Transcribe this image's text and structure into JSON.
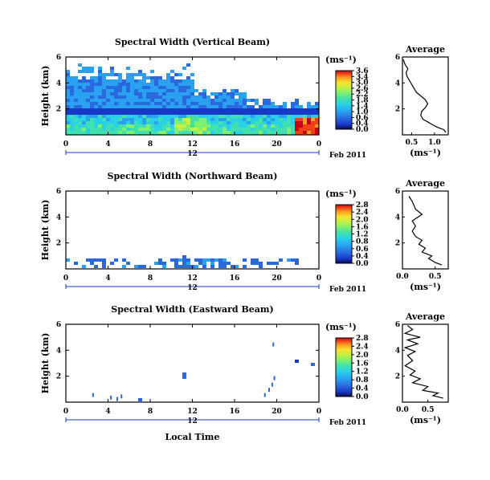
{
  "figure": {
    "date_label": "Feb 2011",
    "xlabel": "Local Time",
    "colorbar_unit": "(ms⁻¹)",
    "avg_unit": "(ms⁻¹)",
    "avg_title": "Average",
    "ylabel": "Height (km)",
    "date_tick": "12",
    "colormap": [
      "#0a0a4a",
      "#1838c8",
      "#2a68e0",
      "#2aa0f0",
      "#28d0e8",
      "#40e0b0",
      "#80f070",
      "#c8f040",
      "#f8e030",
      "#f8a020",
      "#f04018",
      "#c80010"
    ]
  },
  "chart_data": [
    {
      "type": "heatmap",
      "title": "Spectral Width (Vertical Beam)",
      "ylabel": "Height (km)",
      "xlabel": "",
      "x_ticks": [
        "0",
        "4",
        "8",
        "12",
        "16",
        "20",
        "0"
      ],
      "y_ticks": [
        "2",
        "4",
        "6"
      ],
      "xlim": [
        0,
        24
      ],
      "ylim": [
        0,
        6
      ],
      "colorbar": {
        "min": 0,
        "max": 3.6,
        "ticks": [
          "3.6",
          "3.4",
          "3.0",
          "2.6",
          "2.2",
          "1.8",
          "1.4",
          "1.0",
          "0.6",
          "0.4",
          "0.0"
        ]
      },
      "average_profile": {
        "title": "Average",
        "x_ticks": [
          "0.5",
          "1.0"
        ],
        "xlim": [
          0.3,
          1.3
        ],
        "y_ticks": [
          "2",
          "4",
          "6"
        ],
        "points": [
          [
            1.25,
            0.2
          ],
          [
            1.2,
            0.4
          ],
          [
            1.05,
            0.6
          ],
          [
            0.95,
            0.8
          ],
          [
            0.85,
            1.0
          ],
          [
            0.75,
            1.2
          ],
          [
            0.7,
            1.5
          ],
          [
            0.72,
            1.8
          ],
          [
            0.8,
            2.1
          ],
          [
            0.85,
            2.4
          ],
          [
            0.8,
            2.7
          ],
          [
            0.7,
            3.0
          ],
          [
            0.6,
            3.3
          ],
          [
            0.55,
            3.6
          ],
          [
            0.5,
            3.9
          ],
          [
            0.45,
            4.2
          ],
          [
            0.4,
            4.5
          ],
          [
            0.38,
            4.8
          ],
          [
            0.42,
            5.1
          ],
          [
            0.36,
            5.4
          ],
          [
            0.32,
            5.8
          ]
        ]
      }
    },
    {
      "type": "heatmap",
      "title": "Spectral Width (Northward Beam)",
      "ylabel": "Height (km)",
      "xlabel": "",
      "x_ticks": [
        "0",
        "4",
        "8",
        "12",
        "16",
        "20",
        "0"
      ],
      "y_ticks": [
        "2",
        "4",
        "6"
      ],
      "xlim": [
        0,
        24
      ],
      "ylim": [
        0,
        6
      ],
      "colorbar": {
        "min": 0,
        "max": 2.8,
        "ticks": [
          "2.8",
          "2.4",
          "2.0",
          "1.6",
          "1.2",
          "0.8",
          "0.6",
          "0.4",
          "0.0"
        ]
      },
      "average_profile": {
        "title": "Average",
        "x_ticks": [
          "0.0",
          "0.5"
        ],
        "xlim": [
          0,
          0.7
        ],
        "y_ticks": [
          "2",
          "4",
          "6"
        ],
        "points": [
          [
            0.6,
            0.3
          ],
          [
            0.5,
            0.5
          ],
          [
            0.4,
            0.8
          ],
          [
            0.45,
            1.0
          ],
          [
            0.3,
            1.3
          ],
          [
            0.35,
            1.6
          ],
          [
            0.25,
            1.9
          ],
          [
            0.3,
            2.2
          ],
          [
            0.2,
            2.5
          ],
          [
            0.15,
            2.9
          ],
          [
            0.2,
            3.3
          ],
          [
            0.15,
            3.7
          ],
          [
            0.3,
            4.2
          ],
          [
            0.2,
            4.6
          ],
          [
            0.15,
            5.2
          ],
          [
            0.1,
            5.6
          ]
        ]
      }
    },
    {
      "type": "heatmap",
      "title": "Spectral Width (Eastward Beam)",
      "ylabel": "Height (km)",
      "xlabel": "Local Time",
      "x_ticks": [
        "0",
        "4",
        "8",
        "12",
        "16",
        "20",
        "0"
      ],
      "y_ticks": [
        "2",
        "4",
        "6"
      ],
      "xlim": [
        0,
        24
      ],
      "ylim": [
        0,
        6
      ],
      "colorbar": {
        "min": 0,
        "max": 2.8,
        "ticks": [
          "2.8",
          "2.4",
          "2.0",
          "1.6",
          "1.2",
          "0.8",
          "0.4",
          "0.0"
        ]
      },
      "average_profile": {
        "title": "Average",
        "x_ticks": [
          "0.0",
          "0.5"
        ],
        "xlim": [
          0,
          0.9
        ],
        "y_ticks": [
          "2",
          "4",
          "6"
        ],
        "points": [
          [
            0.8,
            0.3
          ],
          [
            0.6,
            0.5
          ],
          [
            0.7,
            0.7
          ],
          [
            0.4,
            0.9
          ],
          [
            0.5,
            1.2
          ],
          [
            0.2,
            1.5
          ],
          [
            0.35,
            1.8
          ],
          [
            0.15,
            2.1
          ],
          [
            0.25,
            2.4
          ],
          [
            0.05,
            2.8
          ],
          [
            0.2,
            3.2
          ],
          [
            0.1,
            3.6
          ],
          [
            0.25,
            3.9
          ],
          [
            0.05,
            4.2
          ],
          [
            0.3,
            4.5
          ],
          [
            0.1,
            4.8
          ],
          [
            0.35,
            5.0
          ],
          [
            0.05,
            5.3
          ],
          [
            0.2,
            5.6
          ],
          [
            0.1,
            5.9
          ]
        ]
      }
    }
  ]
}
